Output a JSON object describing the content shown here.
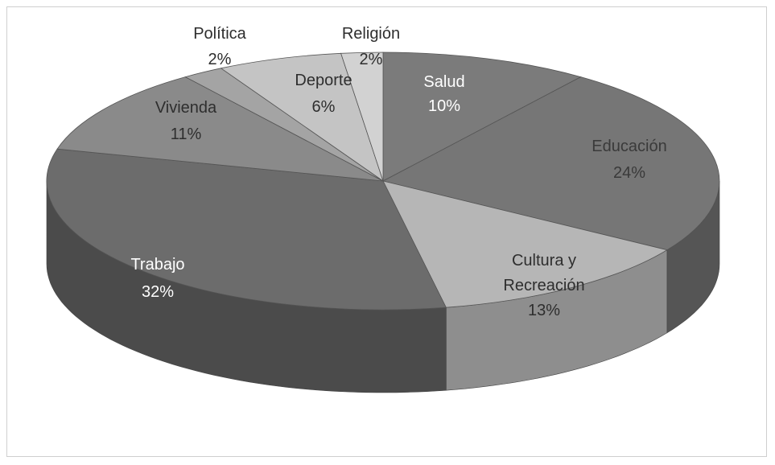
{
  "chart_data": {
    "type": "pie",
    "style": "3d",
    "title": "",
    "series": [
      {
        "name": "",
        "slices": [
          {
            "label": "Salud",
            "value": 10,
            "percent_label": "10%",
            "color": "#7b7b7b",
            "side_color": "#5a5a5a",
            "label_color": "#ffffff"
          },
          {
            "label": "Educación",
            "value": 24,
            "percent_label": "24%",
            "color": "#767676",
            "side_color": "#555555",
            "label_color": "#3a3a3a"
          },
          {
            "label": "Cultura y Recreación",
            "value": 13,
            "percent_label": "13%",
            "color": "#b6b6b6",
            "side_color": "#8e8e8e",
            "label_color": "#2e2e2e"
          },
          {
            "label": "Trabajo",
            "value": 32,
            "percent_label": "32%",
            "color": "#6c6c6c",
            "side_color": "#4b4b4b",
            "label_color": "#ffffff"
          },
          {
            "label": "Vivienda",
            "value": 11,
            "percent_label": "11%",
            "color": "#8a8a8a",
            "side_color": "#666666",
            "label_color": "#2e2e2e"
          },
          {
            "label": "Política",
            "value": 2,
            "percent_label": "2%",
            "color": "#a4a4a4",
            "side_color": "#7d7d7d",
            "label_color": "#2e2e2e"
          },
          {
            "label": "Deporte",
            "value": 6,
            "percent_label": "6%",
            "color": "#c4c4c4",
            "side_color": "#9a9a9a",
            "label_color": "#2e2e2e"
          },
          {
            "label": "Religión",
            "value": 2,
            "percent_label": "2%",
            "color": "#d2d2d2",
            "side_color": "#aaaaaa",
            "label_color": "#2e2e2e"
          }
        ]
      }
    ],
    "legend": "none",
    "start_angle": "12 o'clock",
    "direction": "clockwise"
  }
}
